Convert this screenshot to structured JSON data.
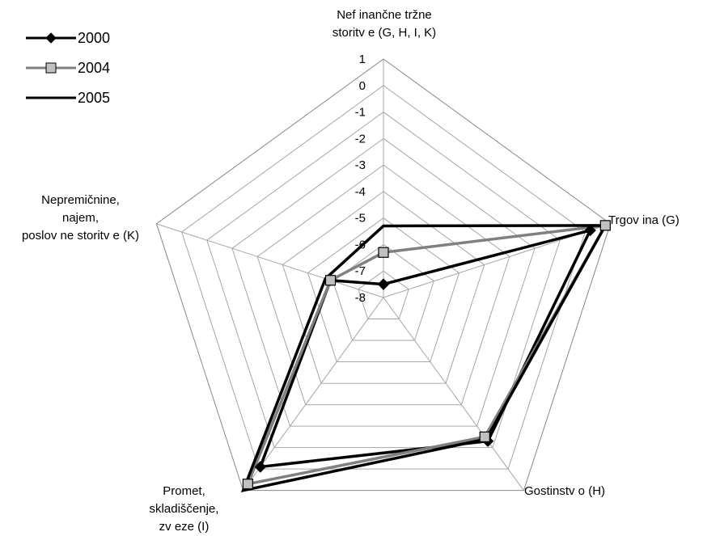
{
  "chart_data": {
    "type": "radar",
    "categories": [
      "Nef inančne tržne\nstoritv e (G, H, I, K)",
      "Trgov ina (G)",
      "Gostinstv o (H)",
      "Promet,\nskladiščenje,\nzv eze (I)",
      "Nepremičnine,\nnajem,\nposlov ne storitv e (K)"
    ],
    "axis": {
      "min": -8,
      "max": 1,
      "ticks": [
        "1",
        "0",
        "-1",
        "-2",
        "-3",
        "-4",
        "-5",
        "-6",
        "-7",
        "-8"
      ]
    },
    "grid": true,
    "legend_position": "top-left",
    "series": [
      {
        "name": "2000",
        "values": [
          -7.5,
          0.2,
          -1.3,
          -0.1,
          -5.9
        ],
        "color": "#000000",
        "marker": "diamond"
      },
      {
        "name": "2004",
        "values": [
          -6.3,
          0.8,
          -1.5,
          0.7,
          -5.9
        ],
        "color": "#808080",
        "marker": "square"
      },
      {
        "name": "2005",
        "values": [
          -5.3,
          0.8,
          -1.4,
          1.0,
          -5.7
        ],
        "color": "#000000",
        "marker": "none"
      }
    ]
  }
}
